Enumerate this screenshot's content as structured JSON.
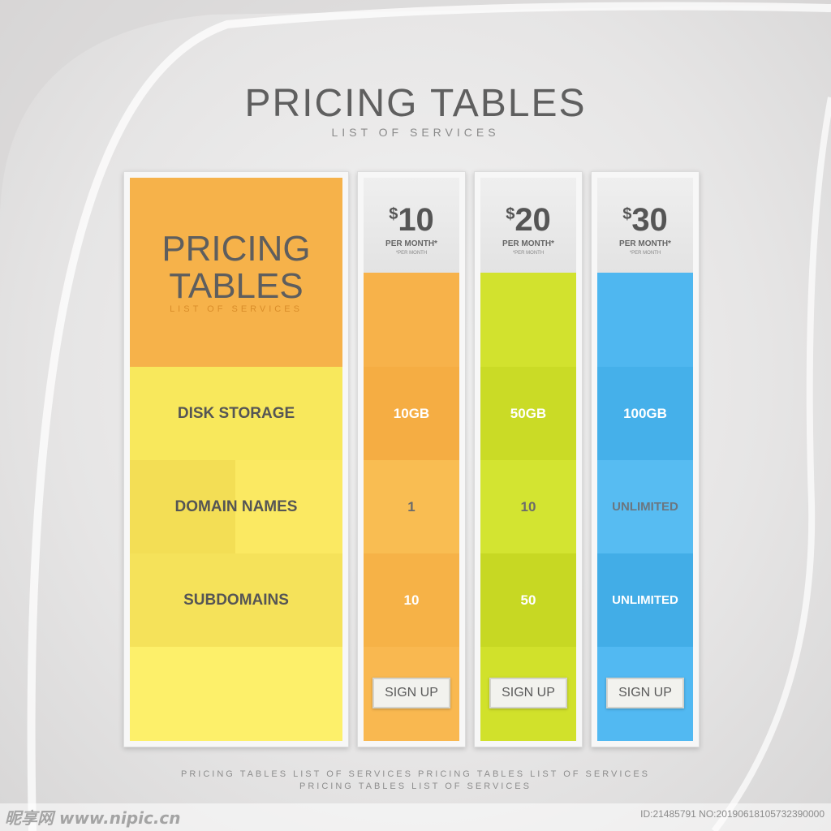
{
  "header": {
    "title": "PRICING  TABLES",
    "subtitle": "LIST OF SERVICES"
  },
  "feature_column": {
    "title_line1": "PRICING",
    "title_line2": "TABLES",
    "subtitle": "LIST OF SERVICES",
    "features": [
      "DISK STORAGE",
      "DOMAIN NAMES",
      "SUBDOMAINS"
    ]
  },
  "plans": [
    {
      "currency": "$",
      "price": "10",
      "per": "PER MONTH*",
      "small": "*PER MONTH",
      "values": [
        "10GB",
        "1",
        "10"
      ],
      "button": "SIGN UP",
      "color": "#f7b24a"
    },
    {
      "currency": "$",
      "price": "20",
      "per": "PER MONTH*",
      "small": "*PER MONTH",
      "values": [
        "50GB",
        "10",
        "50"
      ],
      "button": "SIGN UP",
      "color": "#cfe02c"
    },
    {
      "currency": "$",
      "price": "30",
      "per": "PER MONTH*",
      "small": "*PER MONTH",
      "values": [
        "100GB",
        "UNLIMITED",
        "UNLIMITED"
      ],
      "button": "SIGN UP",
      "color": "#4db5ef"
    }
  ],
  "footer": {
    "line1": "PRICING TABLES  LIST OF SERVICES PRICING TABLES  LIST OF SERVICES",
    "line2": "PRICING TABLES  LIST OF SERVICES"
  },
  "watermark": {
    "left": "昵享网 www.nipic.cn",
    "right": "ID:21485791 NO:20190618105732390000"
  }
}
